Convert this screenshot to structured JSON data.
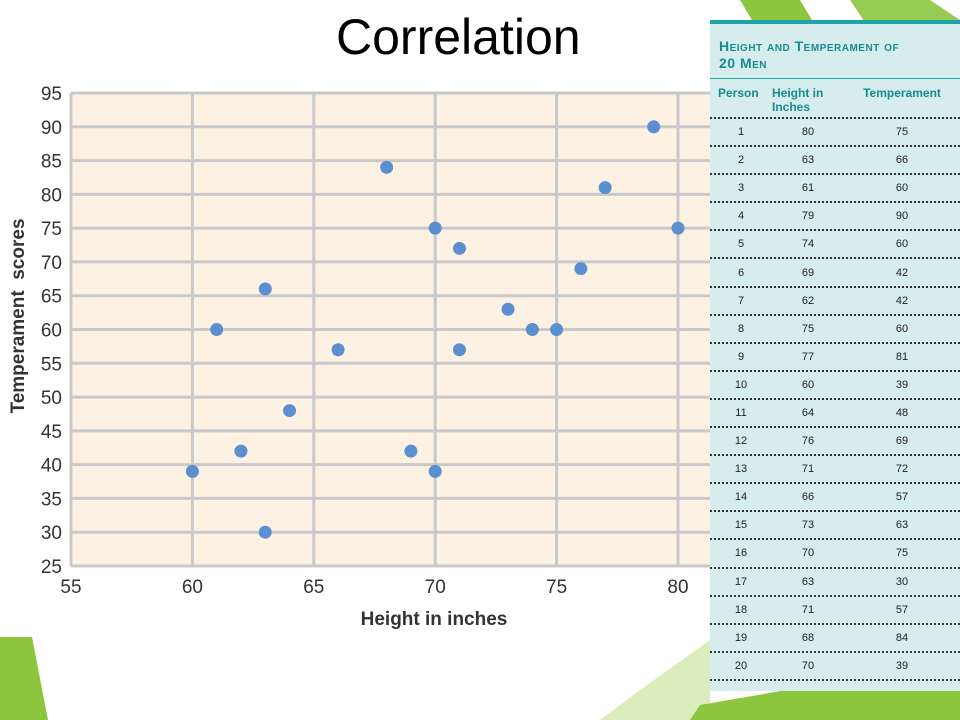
{
  "slide": {
    "title": "Correlation"
  },
  "chart_data": {
    "type": "scatter",
    "title": "",
    "xlabel": "Height in inches",
    "ylabel": "Temperament  scores",
    "xlim": [
      55,
      82
    ],
    "ylim": [
      25,
      95
    ],
    "xticks": [
      55,
      60,
      65,
      70,
      75,
      80
    ],
    "yticks": [
      25,
      30,
      35,
      40,
      45,
      50,
      55,
      60,
      65,
      70,
      75,
      80,
      85,
      90,
      95
    ],
    "grid": true,
    "colors": {
      "point": "#5b8fd0",
      "plot_bg": "#fdf1e3",
      "grid": "#c9c9c9"
    },
    "x": [
      80,
      63,
      61,
      79,
      74,
      69,
      62,
      75,
      77,
      60,
      64,
      76,
      71,
      66,
      73,
      70,
      63,
      71,
      68,
      70
    ],
    "y": [
      75,
      66,
      60,
      90,
      60,
      42,
      42,
      60,
      81,
      39,
      48,
      69,
      72,
      57,
      63,
      75,
      30,
      57,
      84,
      39
    ]
  },
  "table": {
    "title_line1": "Height and Temperament of",
    "title_line2": "20 Men",
    "headers": [
      "Person",
      "Height in Inches",
      "Temperament"
    ],
    "rows": [
      [
        "1",
        "80",
        "75"
      ],
      [
        "2",
        "63",
        "66"
      ],
      [
        "3",
        "61",
        "60"
      ],
      [
        "4",
        "79",
        "90"
      ],
      [
        "5",
        "74",
        "60"
      ],
      [
        "6",
        "69",
        "42"
      ],
      [
        "7",
        "62",
        "42"
      ],
      [
        "8",
        "75",
        "60"
      ],
      [
        "9",
        "77",
        "81"
      ],
      [
        "10",
        "60",
        "39"
      ],
      [
        "11",
        "64",
        "48"
      ],
      [
        "12",
        "76",
        "69"
      ],
      [
        "13",
        "71",
        "72"
      ],
      [
        "14",
        "66",
        "57"
      ],
      [
        "15",
        "73",
        "63"
      ],
      [
        "16",
        "70",
        "75"
      ],
      [
        "17",
        "63",
        "30"
      ],
      [
        "18",
        "71",
        "57"
      ],
      [
        "19",
        "68",
        "84"
      ],
      [
        "20",
        "70",
        "39"
      ]
    ]
  }
}
